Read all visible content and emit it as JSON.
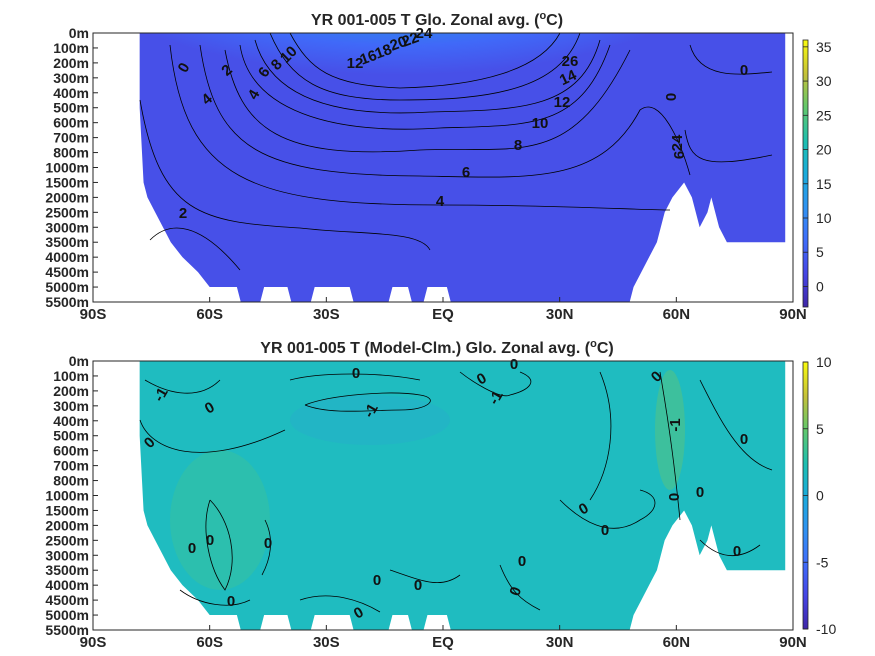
{
  "chart_data": [
    {
      "type": "heatmap",
      "title": "YR 001-005 T Glo. Zonal avg. (",
      "title_unit_super": "o",
      "title_unit_tail": "C)",
      "x_tick_labels": [
        "90S",
        "60S",
        "30S",
        "EQ",
        "30N",
        "60N",
        "90N"
      ],
      "x_ticks": [
        -90,
        -60,
        -30,
        0,
        30,
        60,
        90
      ],
      "xlim": [
        -90,
        90
      ],
      "y_tick_labels": [
        "0m",
        "100m",
        "200m",
        "300m",
        "400m",
        "500m",
        "600m",
        "700m",
        "800m",
        "1000m",
        "1500m",
        "2000m",
        "2500m",
        "3000m",
        "3500m",
        "4000m",
        "4500m",
        "5000m",
        "5500m"
      ],
      "colorbar": {
        "ticks": [
          0,
          5,
          10,
          15,
          20,
          25,
          30,
          35
        ],
        "clim": [
          -3,
          36
        ],
        "colormap": "parula"
      },
      "contour_labels": [
        "0",
        "2",
        "4",
        "6",
        "8",
        "10",
        "12",
        "14",
        "16",
        "18",
        "20",
        "22",
        "24",
        "26"
      ],
      "bottom_ocean_depth_m": [
        [
          -78,
          500
        ],
        [
          -77,
          1500
        ],
        [
          -76,
          2000
        ],
        [
          -74,
          2500
        ],
        [
          -72,
          3000
        ],
        [
          -70,
          3500
        ],
        [
          -67,
          4000
        ],
        [
          -63,
          4500
        ],
        [
          -60,
          5000
        ],
        [
          -53,
          5000
        ],
        [
          -52,
          5500
        ],
        [
          -47,
          5500
        ],
        [
          -46,
          5000
        ],
        [
          -40,
          5000
        ],
        [
          -39,
          5500
        ],
        [
          -34,
          5500
        ],
        [
          -33,
          5000
        ],
        [
          -24,
          5000
        ],
        [
          -23,
          5500
        ],
        [
          -14,
          5500
        ],
        [
          -13,
          5000
        ],
        [
          -9,
          5000
        ],
        [
          -8,
          5500
        ],
        [
          -5,
          5500
        ],
        [
          -4,
          5000
        ],
        [
          1,
          5000
        ],
        [
          2,
          5500
        ],
        [
          48,
          5500
        ],
        [
          49,
          5000
        ],
        [
          51,
          4500
        ],
        [
          53,
          4000
        ],
        [
          55,
          3500
        ],
        [
          57,
          2500
        ],
        [
          59,
          2000
        ],
        [
          62,
          1500
        ],
        [
          64,
          2000
        ],
        [
          66,
          3000
        ],
        [
          68,
          2500
        ],
        [
          69,
          2000
        ],
        [
          71,
          3000
        ],
        [
          73,
          3500
        ],
        [
          88,
          3500
        ]
      ]
    },
    {
      "type": "heatmap",
      "title": "YR 001-005 T (Model-Clm.) Glo. Zonal avg. (",
      "title_unit_super": "o",
      "title_unit_tail": "C)",
      "x_tick_labels": [
        "90S",
        "60S",
        "30S",
        "EQ",
        "30N",
        "60N",
        "90N"
      ],
      "x_ticks": [
        -90,
        -60,
        -30,
        0,
        30,
        60,
        90
      ],
      "xlim": [
        -90,
        90
      ],
      "y_tick_labels": [
        "0m",
        "100m",
        "200m",
        "300m",
        "400m",
        "500m",
        "600m",
        "700m",
        "800m",
        "1000m",
        "1500m",
        "2000m",
        "2500m",
        "3000m",
        "3500m",
        "4000m",
        "4500m",
        "5000m",
        "5500m"
      ],
      "colorbar": {
        "ticks": [
          -10,
          -5,
          0,
          5,
          10
        ],
        "clim": [
          -10,
          10
        ],
        "colormap": "parula"
      },
      "contour_labels": [
        "0",
        "-1",
        "1"
      ]
    }
  ]
}
